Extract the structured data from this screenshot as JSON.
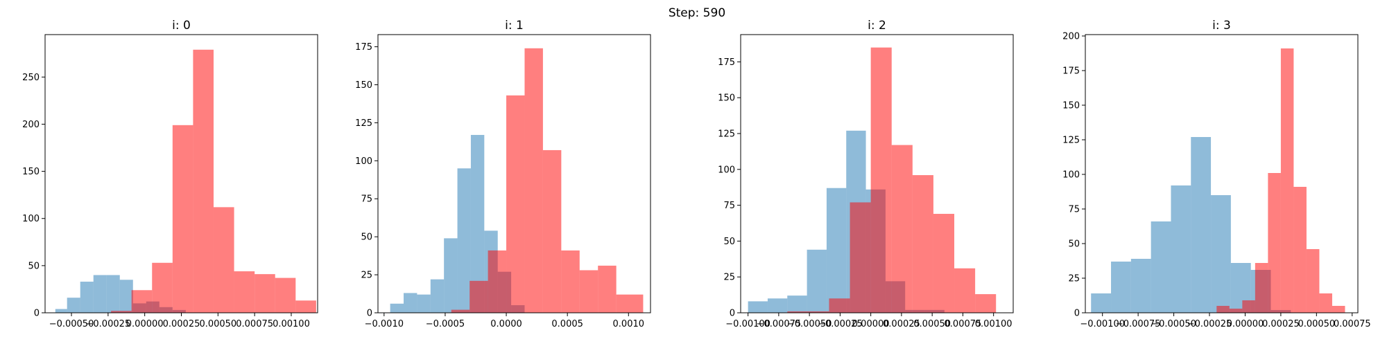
{
  "figure": {
    "title": "Step: 590"
  },
  "chart_data": [
    {
      "type": "histogram",
      "title": "i: 0",
      "xlim": [
        -0.00068,
        0.00118
      ],
      "ylim": [
        0,
        295
      ],
      "xticks": [
        -0.0005,
        -0.00025,
        0.0,
        0.00025,
        0.0005,
        0.00075,
        0.001
      ],
      "xtick_labels": [
        "−0.00050",
        "−0.00025",
        "0.00000",
        "0.00025",
        "0.00050",
        "0.00075",
        "0.00100"
      ],
      "yticks": [
        0,
        50,
        100,
        150,
        200,
        250
      ],
      "ytick_labels": [
        "0",
        "50",
        "100",
        "150",
        "200",
        "250"
      ],
      "series": [
        {
          "color": "#1f77b4",
          "opacity": 0.5,
          "bins": [
            -0.00061,
            -0.00053,
            -0.00044,
            -0.00035,
            -0.00026,
            -0.00017,
            -8e-05,
            1e-05,
            0.0001,
            0.00019,
            0.00028
          ],
          "counts": [
            4,
            16,
            33,
            40,
            40,
            35,
            10,
            12,
            6,
            3
          ]
        },
        {
          "color": "#ff0000",
          "opacity": 0.5,
          "bins": [
            -0.00023,
            -9e-05,
            5e-05,
            0.00019,
            0.00033,
            0.00047,
            0.00061,
            0.00075,
            0.00089,
            0.00103,
            0.00117
          ],
          "counts": [
            2,
            24,
            53,
            199,
            279,
            112,
            44,
            41,
            37,
            13
          ]
        }
      ]
    },
    {
      "type": "histogram",
      "title": "i: 1",
      "xlim": [
        -0.00105,
        0.00118
      ],
      "ylim": [
        0,
        183
      ],
      "xticks": [
        -0.001,
        -0.0005,
        0.0,
        0.0005,
        0.001
      ],
      "xtick_labels": [
        "−0.0010",
        "−0.0005",
        "0.0000",
        "0.0005",
        "0.0010"
      ],
      "yticks": [
        0,
        25,
        50,
        75,
        100,
        125,
        150,
        175
      ],
      "ytick_labels": [
        "0",
        "25",
        "50",
        "75",
        "100",
        "125",
        "150",
        "175"
      ],
      "series": [
        {
          "color": "#1f77b4",
          "opacity": 0.5,
          "bins": [
            -0.00095,
            -0.00084,
            -0.00073,
            -0.00062,
            -0.00051,
            -0.0004,
            -0.00029,
            -0.00018,
            -7e-05,
            4e-05,
            0.00015
          ],
          "counts": [
            6,
            13,
            12,
            22,
            49,
            95,
            117,
            54,
            27,
            5
          ]
        },
        {
          "color": "#ff0000",
          "opacity": 0.5,
          "bins": [
            -0.00045,
            -0.0003,
            -0.00015,
            0.0,
            0.00015,
            0.0003,
            0.00045,
            0.0006,
            0.00075,
            0.0009,
            0.00112
          ],
          "counts": [
            2,
            21,
            41,
            143,
            174,
            107,
            41,
            28,
            31,
            12
          ]
        }
      ]
    },
    {
      "type": "histogram",
      "title": "i: 2",
      "xlim": [
        -0.00106,
        0.00116
      ],
      "ylim": [
        0,
        194
      ],
      "xticks": [
        -0.001,
        -0.00075,
        -0.0005,
        -0.00025,
        0.0,
        0.00025,
        0.0005,
        0.00075,
        0.001
      ],
      "xtick_labels": [
        "−0.00100",
        "−0.00075",
        "−0.00050",
        "−0.00025",
        "0.00000",
        "0.00025",
        "0.00050",
        "0.00075",
        "0.00100"
      ],
      "yticks": [
        0,
        25,
        50,
        75,
        100,
        125,
        150,
        175
      ],
      "ytick_labels": [
        "0",
        "25",
        "50",
        "75",
        "100",
        "125",
        "150",
        "175"
      ],
      "series": [
        {
          "color": "#1f77b4",
          "opacity": 0.5,
          "bins": [
            -0.001,
            -0.00084,
            -0.00068,
            -0.00052,
            -0.00036,
            -0.0002,
            -4e-05,
            0.00012,
            0.00028,
            0.00044,
            0.0006
          ],
          "counts": [
            8,
            10,
            12,
            44,
            87,
            127,
            86,
            22,
            2,
            2
          ]
        },
        {
          "color": "#ff0000",
          "opacity": 0.5,
          "bins": [
            -0.00068,
            -0.00051,
            -0.00034,
            -0.00017,
            0.0,
            0.00017,
            0.00034,
            0.00051,
            0.00068,
            0.00085,
            0.00102
          ],
          "counts": [
            1,
            1,
            10,
            77,
            185,
            117,
            96,
            69,
            31,
            13
          ]
        }
      ]
    },
    {
      "type": "histogram",
      "title": "i: 3",
      "xlim": [
        -0.00112,
        0.00079
      ],
      "ylim": [
        0,
        201
      ],
      "xticks": [
        -0.001,
        -0.00075,
        -0.0005,
        -0.00025,
        0.0,
        0.00025,
        0.0005,
        0.00075
      ],
      "xtick_labels": [
        "−0.00100",
        "−0.00075",
        "−0.00050",
        "−0.00025",
        "0.00000",
        "0.00025",
        "0.00050",
        "0.00075"
      ],
      "yticks": [
        0,
        25,
        50,
        75,
        100,
        125,
        150,
        175,
        200
      ],
      "ytick_labels": [
        "0",
        "25",
        "50",
        "75",
        "100",
        "125",
        "150",
        "175",
        "200"
      ],
      "series": [
        {
          "color": "#1f77b4",
          "opacity": 0.5,
          "bins": [
            -0.00108,
            -0.00094,
            -0.0008,
            -0.00066,
            -0.00052,
            -0.00038,
            -0.00024,
            -0.0001,
            4e-05,
            0.00018,
            0.00032
          ],
          "counts": [
            14,
            37,
            39,
            66,
            92,
            127,
            85,
            36,
            31,
            2
          ]
        },
        {
          "color": "#ff0000",
          "opacity": 0.5,
          "bins": [
            -0.0002,
            -0.00011,
            -2e-05,
            7e-05,
            0.00016,
            0.00025,
            0.00034,
            0.00043,
            0.00052,
            0.00061,
            0.0007
          ],
          "counts": [
            5,
            3,
            9,
            36,
            101,
            191,
            91,
            46,
            14,
            5
          ]
        }
      ]
    }
  ]
}
